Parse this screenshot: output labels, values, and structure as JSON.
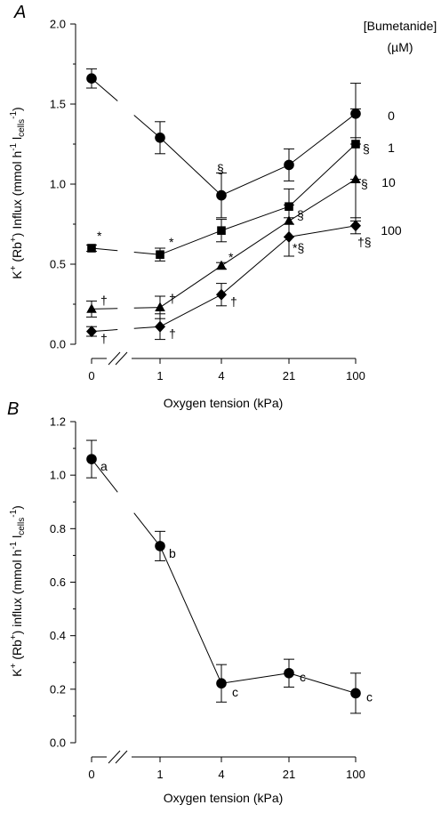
{
  "chart_data": [
    {
      "panel_label": "A",
      "type": "line",
      "xlabel": "Oxygen  tension (kPa)",
      "ylabel": "K+ (Rb+) Influx (mmol h-1 lcells-1)",
      "ylim": [
        0,
        2.0
      ],
      "yticks": [
        "0.0",
        "0.5",
        "1.0",
        "1.5",
        "2.0"
      ],
      "x": [
        "0",
        "1",
        "4",
        "21",
        "100"
      ],
      "legend_title": [
        "[Bumetanide]",
        "(µM)"
      ],
      "series": [
        {
          "name": "0",
          "marker": "circle",
          "values": [
            1.66,
            1.29,
            0.93,
            1.12,
            1.44
          ],
          "errors": [
            0.06,
            0.1,
            0.14,
            0.1,
            0.19
          ],
          "annotations": [
            "",
            "",
            "§",
            "",
            ""
          ]
        },
        {
          "name": "1",
          "marker": "square",
          "values": [
            0.6,
            0.56,
            0.71,
            0.86,
            1.25
          ],
          "errors": [
            0.02,
            0.04,
            0.07,
            0.11,
            0.22
          ],
          "annotations": [
            "*",
            "*",
            "",
            "",
            "§"
          ]
        },
        {
          "name": "10",
          "marker": "triangle",
          "values": [
            0.22,
            0.23,
            0.49,
            0.77,
            1.03
          ],
          "errors": [
            0.05,
            0.07,
            0.02,
            0.1,
            0.26
          ],
          "annotations": [
            "†",
            "†",
            "*",
            "§",
            "§"
          ]
        },
        {
          "name": "100",
          "marker": "diamond",
          "values": [
            0.08,
            0.11,
            0.31,
            0.67,
            0.74
          ],
          "errors": [
            0.03,
            0.08,
            0.07,
            0.12,
            0.05
          ],
          "annotations": [
            "†",
            "†",
            "†",
            "*§",
            "†§"
          ]
        }
      ]
    },
    {
      "panel_label": "B",
      "type": "line",
      "xlabel": "Oxygen  tension (kPa)",
      "ylabel": "K+ (Rb+) influx (mmol h-1 lcells-1)",
      "ylim": [
        0,
        1.2
      ],
      "yticks": [
        "0.0",
        "0.2",
        "0.4",
        "0.6",
        "0.8",
        "1.0",
        "1.2"
      ],
      "x": [
        "0",
        "1",
        "4",
        "21",
        "100"
      ],
      "series": [
        {
          "name": "",
          "marker": "circle",
          "values": [
            1.06,
            0.735,
            0.222,
            0.26,
            0.185
          ],
          "errors": [
            0.07,
            0.055,
            0.07,
            0.052,
            0.075
          ],
          "annotations": [
            "a",
            "b",
            "c",
            "c",
            "c"
          ]
        }
      ]
    }
  ]
}
